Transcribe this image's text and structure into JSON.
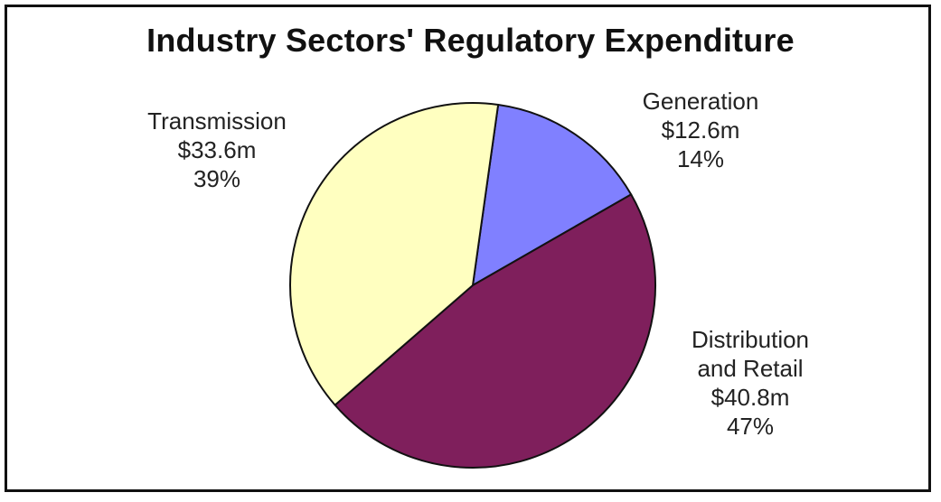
{
  "chart_data": {
    "type": "pie",
    "title": "Industry Sectors' Regulatory Expenditure",
    "slices": [
      {
        "name": "Generation",
        "name_lines": [
          "Generation"
        ],
        "amount": "$12.6m",
        "value": 12.6,
        "percent_label": "14%",
        "color": "#8080ff"
      },
      {
        "name": "Distribution and Retail",
        "name_lines": [
          "Distribution",
          "and Retail"
        ],
        "amount": "$40.8m",
        "value": 40.8,
        "percent_label": "47%",
        "color": "#7f1f5c"
      },
      {
        "name": "Transmission",
        "name_lines": [
          "Transmission"
        ],
        "amount": "$33.6m",
        "value": 33.6,
        "percent_label": "39%",
        "color": "#ffffc0"
      }
    ],
    "start_angle_deg": 8,
    "direction": "clockwise",
    "legend": "none"
  }
}
